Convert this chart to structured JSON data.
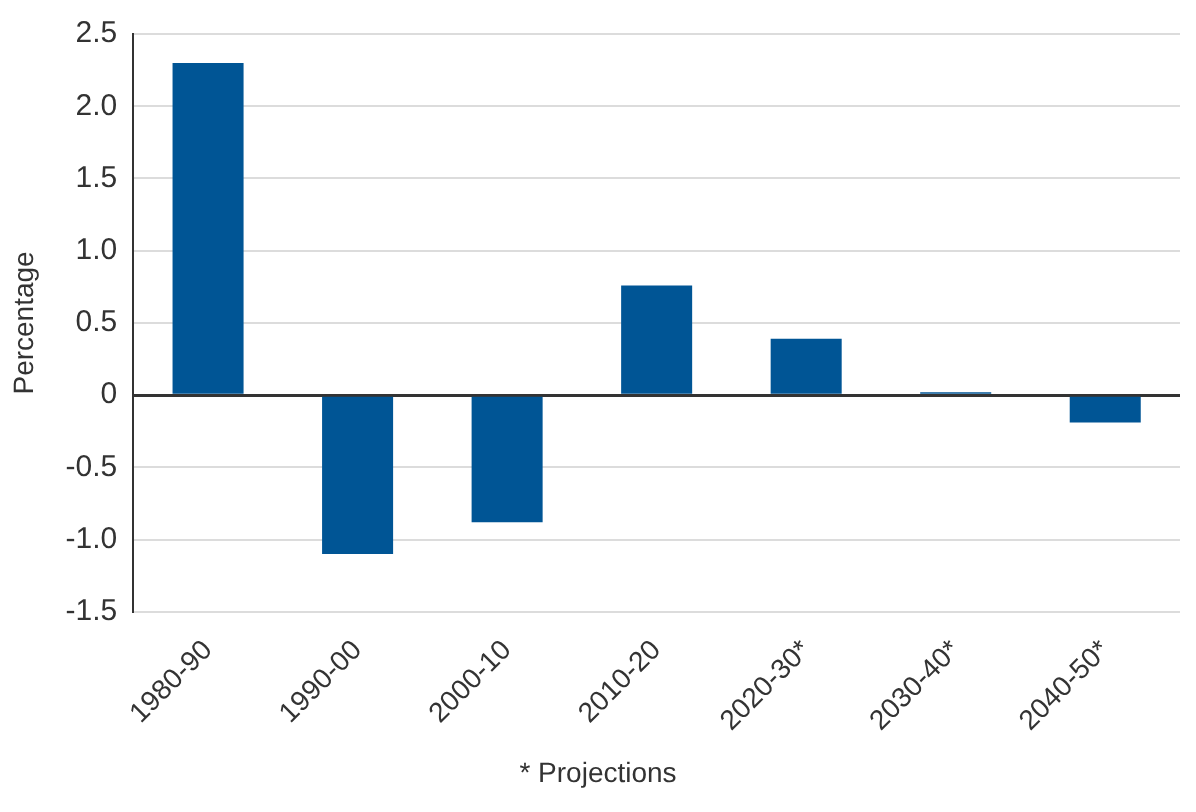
{
  "chart_data": {
    "type": "bar",
    "ylabel": "Percentage",
    "categories": [
      "1980-90",
      "1990-00",
      "2000-10",
      "2010-20",
      "2020-30*",
      "2030-40*",
      "2040-50*"
    ],
    "values": [
      2.3,
      -1.1,
      -0.88,
      0.76,
      0.39,
      0.02,
      -0.19
    ],
    "color": "#005595",
    "ylim": [
      -1.5,
      2.5
    ],
    "yticks": [
      -1.5,
      {
        "value": -1,
        "label": "-1.0"
      },
      -0.5,
      0,
      0.5,
      {
        "value": 1,
        "label": "1.0"
      },
      1.5,
      {
        "value": 2,
        "label": "2.0"
      },
      2.5
    ],
    "grid": "y",
    "legend": false,
    "annotations": [
      "* Projections"
    ]
  }
}
